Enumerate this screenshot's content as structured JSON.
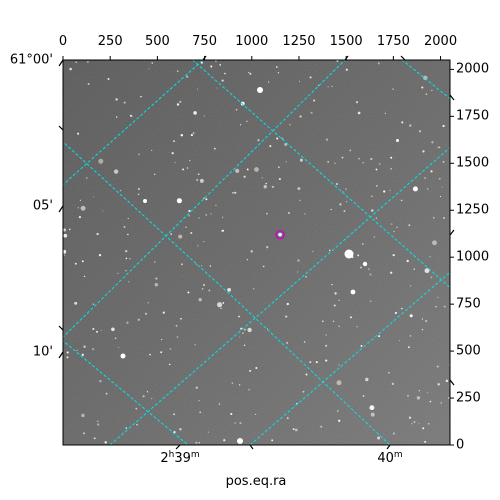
{
  "chart_data": {
    "type": "scatter",
    "description": "Astronomical FITS image (greyscale star field) with WCS grid overlay",
    "xlabel": "pos.eq.ra",
    "pixel_x_axis": {
      "range": [
        0,
        2050
      ],
      "ticks": [
        0,
        250,
        500,
        750,
        1000,
        1250,
        1500,
        1750,
        2000
      ]
    },
    "pixel_y_axis": {
      "range": [
        0,
        2050
      ],
      "ticks": [
        0,
        250,
        500,
        750,
        1000,
        1250,
        1500,
        1750,
        2000
      ]
    },
    "dec_ticks": [
      "61°00'",
      "05'",
      "10'"
    ],
    "ra_ticks": [
      {
        "major": "2",
        "major_unit": "h",
        "minor": "39",
        "minor_unit": "m"
      },
      {
        "major": "",
        "major_unit": "",
        "minor": "40",
        "minor_unit": "m"
      }
    ],
    "grid": true,
    "colors": {
      "grid": "#00e5e5",
      "marker": "#cc00cc",
      "background": "#5a5a5a",
      "frame": "#000000"
    },
    "marker": {
      "x": 1150,
      "y": 1120,
      "shape": "circle"
    }
  }
}
